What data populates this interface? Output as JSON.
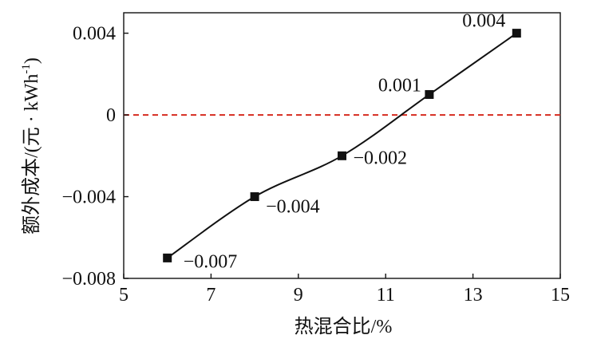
{
  "chart_data": {
    "type": "line",
    "title": "",
    "xlabel": "热混合比/%",
    "ylabel_main": "额外成本/(元 · kWh",
    "ylabel_sup": "-1",
    "ylabel_end": ")",
    "xlim": [
      5,
      15
    ],
    "ylim": [
      -0.008,
      0.005
    ],
    "x_ticks": [
      5,
      7,
      9,
      11,
      13,
      15
    ],
    "x_tick_labels": [
      "5",
      "7",
      "9",
      "11",
      "13",
      "15"
    ],
    "y_ticks": [
      0.004,
      0,
      -0.004,
      -0.008
    ],
    "y_tick_labels": [
      "0.004",
      "0",
      "−0.004",
      "−0.008"
    ],
    "grid": false,
    "reference_line": {
      "y": 0,
      "color": "#d62b1f",
      "style": "dashed"
    },
    "series": [
      {
        "color": "#111111",
        "marker": "square",
        "x": [
          6,
          8,
          10,
          12,
          14
        ],
        "y": [
          -0.007,
          -0.004,
          -0.002,
          0.001,
          0.004
        ],
        "labels": [
          "−0.007",
          "−0.004",
          "−0.002",
          "0.001",
          "0.004"
        ]
      }
    ]
  }
}
